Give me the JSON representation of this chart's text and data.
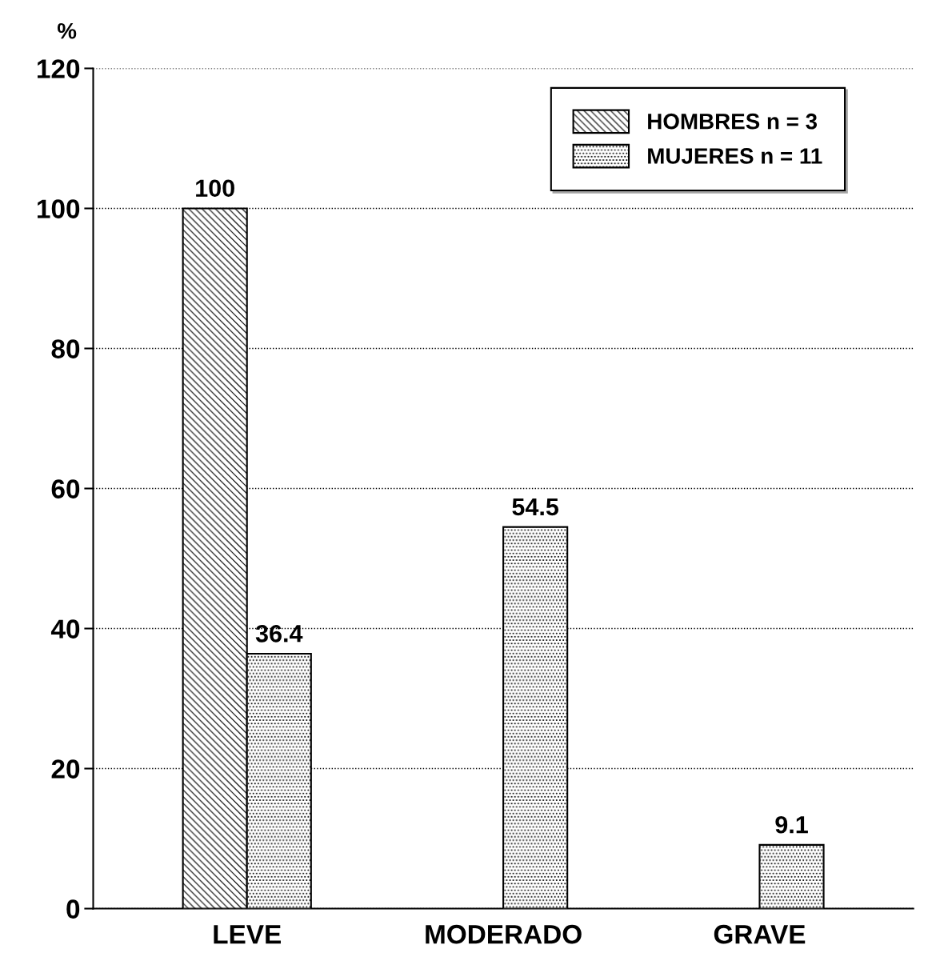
{
  "chart_data": {
    "type": "bar",
    "ylabel": "%",
    "categories": [
      "LEVE",
      "MODERADO",
      "GRAVE"
    ],
    "series": [
      {
        "name": "HOMBRES n = 3",
        "color": "#000000",
        "values": [
          100,
          null,
          null
        ],
        "value_labels": [
          "100",
          null,
          null
        ]
      },
      {
        "name": "MUJERES n = 11",
        "color": "#000000",
        "values": [
          36.4,
          54.5,
          9.1
        ],
        "value_labels": [
          "36.4",
          "54.5",
          "9.1"
        ]
      }
    ],
    "ylim": [
      0,
      120
    ],
    "yticks": [
      0,
      20,
      40,
      60,
      80,
      100,
      120
    ],
    "grid": "y",
    "legend": "top right"
  }
}
